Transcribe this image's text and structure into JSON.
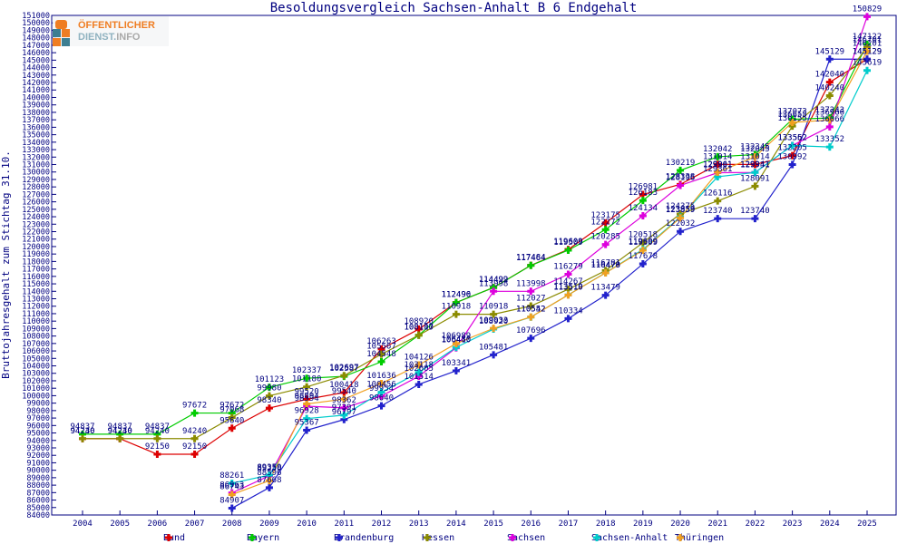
{
  "page": {
    "title": "Besoldungsvergleich Sachsen-Anhalt B 6 Endgehalt"
  },
  "logo": {
    "line1": "ÖFFENTLICHER",
    "line2a": "DIENST.",
    "line2b": "INFO",
    "orange": "#ef7d22",
    "teal": "#3d7e91"
  },
  "chart_data": {
    "type": "line",
    "title": "Besoldungsvergleich Sachsen-Anhalt B 6 Endgehalt",
    "xlabel": "",
    "ylabel": "Bruttojahresgehalt zum Stichtag 31.10.",
    "x": [
      2004,
      2005,
      2006,
      2007,
      2008,
      2009,
      2010,
      2011,
      2012,
      2013,
      2014,
      2015,
      2016,
      2017,
      2018,
      2019,
      2020,
      2021,
      2022,
      2023,
      2024,
      2025
    ],
    "ylim": [
      84000,
      151000
    ],
    "ytick_step": 1000,
    "grid": false,
    "legend_position": "bottom",
    "axis_color": "#000080",
    "label_color": "#000080",
    "series": [
      {
        "name": "Bund",
        "color": "#dd0000",
        "values": [
          94230,
          94230,
          92150,
          92150,
          95640,
          98340,
          99520,
          100418,
          106263,
          108920,
          112496,
          114499,
          117484,
          119609,
          123175,
          126981,
          128338,
          131014,
          131014,
          132205,
          142040,
          145129
        ]
      },
      {
        "name": "Bayern",
        "color": "#00cc00",
        "values": [
          94837,
          94837,
          94837,
          97672,
          97672,
          101123,
          102337,
          102587,
          104548,
          108110,
          112490,
          114492,
          117464,
          119509,
          122272,
          126183,
          130219,
          132042,
          132345,
          137073,
          137243,
          147122
        ]
      },
      {
        "name": "Brandenburg",
        "color": "#2222cc",
        "values": [
          null,
          null,
          null,
          null,
          84907,
          87668,
          95367,
          96797,
          98640,
          101514,
          103341,
          105481,
          107696,
          110334,
          113479,
          117678,
          122032,
          123740,
          123740,
          130992,
          145129,
          145129
        ]
      },
      {
        "name": "Hessen",
        "color": "#8b8b00",
        "values": [
          94240,
          94240,
          94240,
          94240,
          97068,
          99980,
          101180,
          102697,
          105567,
          108107,
          110918,
          110918,
          112027,
          114267,
          116781,
          120518,
          124375,
          126116,
          128091,
          136155,
          140240,
          146701
        ]
      },
      {
        "name": "Sachsen",
        "color": "#dd00dd",
        "values": [
          null,
          null,
          null,
          null,
          86963,
          89250,
          98594,
          98362,
          99954,
          102605,
          106410,
          113998,
          113998,
          116279,
          120285,
          124134,
          128196,
          129901,
          129941,
          133562,
          136066,
          150829
        ]
      },
      {
        "name": "Sachsen-Anhalt",
        "color": "#00cccc",
        "values": [
          null,
          null,
          null,
          null,
          88261,
          89350,
          96928,
          97391,
          100456,
          103118,
          106480,
          108920,
          110542,
          113519,
          116478,
          119609,
          123959,
          129361,
          129931,
          133552,
          133352,
          143619
        ]
      },
      {
        "name": "Thüringen",
        "color": "#f0a020",
        "values": [
          null,
          null,
          null,
          null,
          86743,
          88596,
          98894,
          99540,
          101636,
          104126,
          106989,
          109033,
          110552,
          113510,
          116470,
          119509,
          123859,
          129961,
          132045,
          136655,
          136966,
          146201
        ]
      }
    ]
  }
}
